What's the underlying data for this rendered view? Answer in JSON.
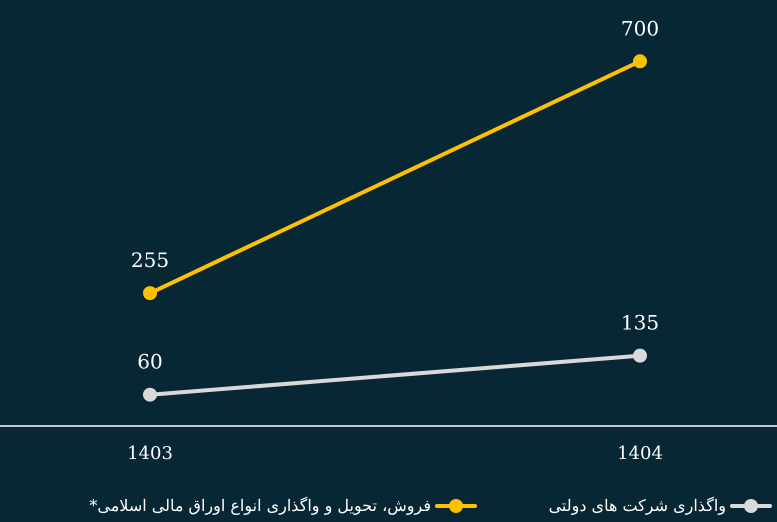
{
  "chart_data": {
    "type": "line",
    "categories": [
      "1403",
      "1404"
    ],
    "series": [
      {
        "name": "فروش، تحویل و واگذاری انواع اوراق مالی اسلامی*",
        "values": [
          255,
          700
        ],
        "color": "#FFC000"
      },
      {
        "name": "واگذاری شرکت های دولتی",
        "values": [
          60,
          135
        ],
        "color": "#D9D9D9"
      }
    ],
    "ylim": [
      0,
      760
    ],
    "grid": false,
    "legend_position": "bottom",
    "background": "#062733",
    "axis_color": "#FFFFFF",
    "text_color": "#FFFFFF"
  },
  "legend": [
    {
      "label": "واگذاری شرکت های دولتی",
      "color": "#D9D9D9"
    },
    {
      "label": "فروش، تحویل و واگذاری انواع اوراق مالی اسلامی*",
      "color": "#FFC000"
    }
  ]
}
